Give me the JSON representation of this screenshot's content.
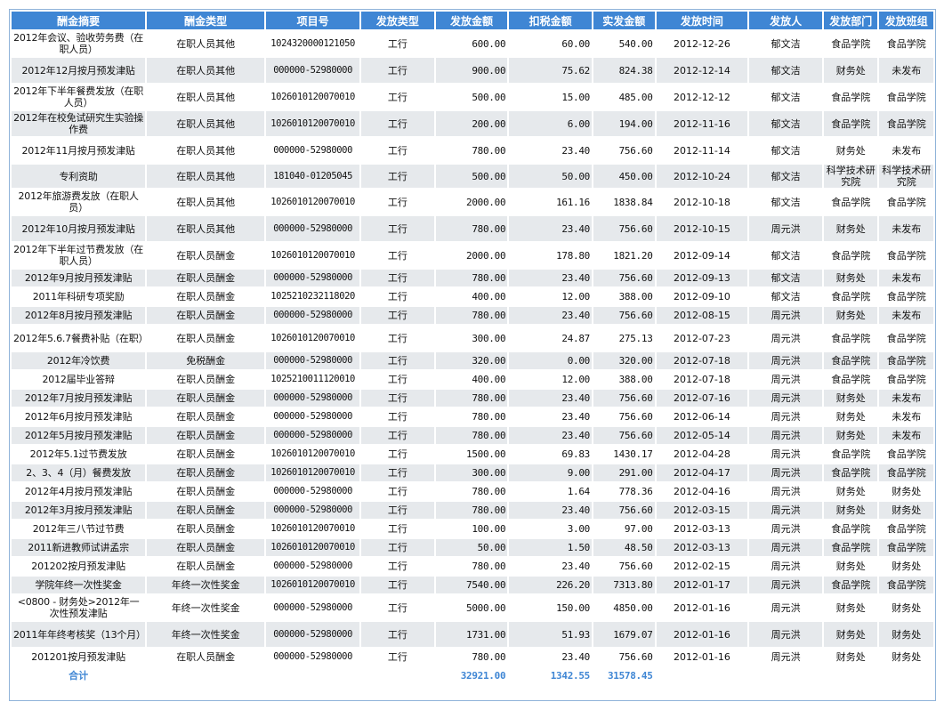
{
  "columns": [
    "酬金摘要",
    "酬金类型",
    "项目号",
    "发放类型",
    "发放金额",
    "扣税金额",
    "实发金额",
    "发放时间",
    "发放人",
    "发放部门",
    "发放班组"
  ],
  "rows": [
    {
      "summary": "2012年会议、验收劳务费（在职人员）",
      "type": "在职人员其他",
      "project": "1024320000121050",
      "method": "工行",
      "amount": "600.00",
      "tax": "60.00",
      "net": "540.00",
      "date": "2012-12-26",
      "issuer": "郁文洁",
      "dept": "食品学院",
      "group": "食品学院"
    },
    {
      "summary": "2012年12月按月预发津贴",
      "type": "在职人员其他",
      "project": "000000-52980000",
      "method": "工行",
      "amount": "900.00",
      "tax": "75.62",
      "net": "824.38",
      "date": "2012-12-14",
      "issuer": "郁文洁",
      "dept": "财务处",
      "group": "未发布"
    },
    {
      "summary": "2012年下半年餐费发放（在职人员）",
      "type": "在职人员其他",
      "project": "1026010120070010",
      "method": "工行",
      "amount": "500.00",
      "tax": "15.00",
      "net": "485.00",
      "date": "2012-12-12",
      "issuer": "郁文洁",
      "dept": "食品学院",
      "group": "食品学院"
    },
    {
      "summary": "2012年在校免试研究生实验操作费",
      "type": "在职人员其他",
      "project": "1026010120070010",
      "method": "工行",
      "amount": "200.00",
      "tax": "6.00",
      "net": "194.00",
      "date": "2012-11-16",
      "issuer": "郁文洁",
      "dept": "食品学院",
      "group": "食品学院"
    },
    {
      "summary": "2012年11月按月预发津贴",
      "type": "在职人员其他",
      "project": "000000-52980000",
      "method": "工行",
      "amount": "780.00",
      "tax": "23.40",
      "net": "756.60",
      "date": "2012-11-14",
      "issuer": "郁文洁",
      "dept": "财务处",
      "group": "未发布"
    },
    {
      "summary": "专利资助",
      "type": "在职人员其他",
      "project": "181040-01205045",
      "method": "工行",
      "amount": "500.00",
      "tax": "50.00",
      "net": "450.00",
      "date": "2012-10-24",
      "issuer": "郁文洁",
      "dept": "科学技术研究院",
      "group": "科学技术研究院"
    },
    {
      "summary": "2012年旅游费发放（在职人员）",
      "type": "在职人员其他",
      "project": "1026010120070010",
      "method": "工行",
      "amount": "2000.00",
      "tax": "161.16",
      "net": "1838.84",
      "date": "2012-10-18",
      "issuer": "郁文洁",
      "dept": "食品学院",
      "group": "食品学院"
    },
    {
      "summary": "2012年10月按月预发津贴",
      "type": "在职人员其他",
      "project": "000000-52980000",
      "method": "工行",
      "amount": "780.00",
      "tax": "23.40",
      "net": "756.60",
      "date": "2012-10-15",
      "issuer": "周元洪",
      "dept": "财务处",
      "group": "未发布"
    },
    {
      "summary": "2012年下半年过节费发放（在职人员）",
      "type": "在职人员酬金",
      "project": "1026010120070010",
      "method": "工行",
      "amount": "2000.00",
      "tax": "178.80",
      "net": "1821.20",
      "date": "2012-09-14",
      "issuer": "郁文洁",
      "dept": "食品学院",
      "group": "食品学院"
    },
    {
      "summary": "2012年9月按月预发津贴",
      "type": "在职人员酬金",
      "project": "000000-52980000",
      "method": "工行",
      "amount": "780.00",
      "tax": "23.40",
      "net": "756.60",
      "date": "2012-09-13",
      "issuer": "郁文洁",
      "dept": "财务处",
      "group": "未发布"
    },
    {
      "summary": "2011年科研专项奖励",
      "type": "在职人员酬金",
      "project": "1025210232118020",
      "method": "工行",
      "amount": "400.00",
      "tax": "12.00",
      "net": "388.00",
      "date": "2012-09-10",
      "issuer": "郁文洁",
      "dept": "食品学院",
      "group": "食品学院"
    },
    {
      "summary": "2012年8月按月预发津贴",
      "type": "在职人员酬金",
      "project": "000000-52980000",
      "method": "工行",
      "amount": "780.00",
      "tax": "23.40",
      "net": "756.60",
      "date": "2012-08-15",
      "issuer": "周元洪",
      "dept": "财务处",
      "group": "未发布"
    },
    {
      "summary": "2012年5.6.7餐费补贴（在职）",
      "type": "在职人员酬金",
      "project": "1026010120070010",
      "method": "工行",
      "amount": "300.00",
      "tax": "24.87",
      "net": "275.13",
      "date": "2012-07-23",
      "issuer": "周元洪",
      "dept": "食品学院",
      "group": "食品学院"
    },
    {
      "summary": "2012年冷饮费",
      "type": "免税酬金",
      "project": "000000-52980000",
      "method": "工行",
      "amount": "320.00",
      "tax": "0.00",
      "net": "320.00",
      "date": "2012-07-18",
      "issuer": "周元洪",
      "dept": "食品学院",
      "group": "食品学院"
    },
    {
      "summary": "2012届毕业答辩",
      "type": "在职人员酬金",
      "project": "1025210011120010",
      "method": "工行",
      "amount": "400.00",
      "tax": "12.00",
      "net": "388.00",
      "date": "2012-07-18",
      "issuer": "周元洪",
      "dept": "食品学院",
      "group": "食品学院"
    },
    {
      "summary": "2012年7月按月预发津贴",
      "type": "在职人员酬金",
      "project": "000000-52980000",
      "method": "工行",
      "amount": "780.00",
      "tax": "23.40",
      "net": "756.60",
      "date": "2012-07-16",
      "issuer": "周元洪",
      "dept": "财务处",
      "group": "未发布"
    },
    {
      "summary": "2012年6月按月预发津贴",
      "type": "在职人员酬金",
      "project": "000000-52980000",
      "method": "工行",
      "amount": "780.00",
      "tax": "23.40",
      "net": "756.60",
      "date": "2012-06-14",
      "issuer": "周元洪",
      "dept": "财务处",
      "group": "未发布"
    },
    {
      "summary": "2012年5月按月预发津贴",
      "type": "在职人员酬金",
      "project": "000000-52980000",
      "method": "工行",
      "amount": "780.00",
      "tax": "23.40",
      "net": "756.60",
      "date": "2012-05-14",
      "issuer": "周元洪",
      "dept": "财务处",
      "group": "未发布"
    },
    {
      "summary": "2012年5.1过节费发放",
      "type": "在职人员酬金",
      "project": "1026010120070010",
      "method": "工行",
      "amount": "1500.00",
      "tax": "69.83",
      "net": "1430.17",
      "date": "2012-04-28",
      "issuer": "周元洪",
      "dept": "食品学院",
      "group": "食品学院"
    },
    {
      "summary": "2、3、4（月）餐费发放",
      "type": "在职人员酬金",
      "project": "1026010120070010",
      "method": "工行",
      "amount": "300.00",
      "tax": "9.00",
      "net": "291.00",
      "date": "2012-04-17",
      "issuer": "周元洪",
      "dept": "食品学院",
      "group": "食品学院"
    },
    {
      "summary": "2012年4月按月预发津贴",
      "type": "在职人员酬金",
      "project": "000000-52980000",
      "method": "工行",
      "amount": "780.00",
      "tax": "1.64",
      "net": "778.36",
      "date": "2012-04-16",
      "issuer": "周元洪",
      "dept": "财务处",
      "group": "财务处"
    },
    {
      "summary": "2012年3月按月预发津贴",
      "type": "在职人员酬金",
      "project": "000000-52980000",
      "method": "工行",
      "amount": "780.00",
      "tax": "23.40",
      "net": "756.60",
      "date": "2012-03-15",
      "issuer": "周元洪",
      "dept": "财务处",
      "group": "财务处"
    },
    {
      "summary": "2012年三八节过节费",
      "type": "在职人员酬金",
      "project": "1026010120070010",
      "method": "工行",
      "amount": "100.00",
      "tax": "3.00",
      "net": "97.00",
      "date": "2012-03-13",
      "issuer": "周元洪",
      "dept": "食品学院",
      "group": "食品学院"
    },
    {
      "summary": "2011新进教师试讲孟宗",
      "type": "在职人员酬金",
      "project": "1026010120070010",
      "method": "工行",
      "amount": "50.00",
      "tax": "1.50",
      "net": "48.50",
      "date": "2012-03-13",
      "issuer": "周元洪",
      "dept": "食品学院",
      "group": "食品学院"
    },
    {
      "summary": "201202按月预发津贴",
      "type": "在职人员酬金",
      "project": "000000-52980000",
      "method": "工行",
      "amount": "780.00",
      "tax": "23.40",
      "net": "756.60",
      "date": "2012-02-15",
      "issuer": "周元洪",
      "dept": "财务处",
      "group": "财务处"
    },
    {
      "summary": "学院年终一次性奖金",
      "type": "年终一次性奖金",
      "project": "1026010120070010",
      "method": "工行",
      "amount": "7540.00",
      "tax": "226.20",
      "net": "7313.80",
      "date": "2012-01-17",
      "issuer": "周元洪",
      "dept": "食品学院",
      "group": "食品学院"
    },
    {
      "summary": "<0800 - 财务处>2012年一次性预发津贴",
      "type": "年终一次性奖金",
      "project": "000000-52980000",
      "method": "工行",
      "amount": "5000.00",
      "tax": "150.00",
      "net": "4850.00",
      "date": "2012-01-16",
      "issuer": "周元洪",
      "dept": "财务处",
      "group": "财务处"
    },
    {
      "summary": "2011年年终考核奖（13个月）",
      "type": "年终一次性奖金",
      "project": "000000-52980000",
      "method": "工行",
      "amount": "1731.00",
      "tax": "51.93",
      "net": "1679.07",
      "date": "2012-01-16",
      "issuer": "周元洪",
      "dept": "财务处",
      "group": "财务处"
    },
    {
      "summary": "201201按月预发津贴",
      "type": "在职人员酬金",
      "project": "000000-52980000",
      "method": "工行",
      "amount": "780.00",
      "tax": "23.40",
      "net": "756.60",
      "date": "2012-01-16",
      "issuer": "周元洪",
      "dept": "财务处",
      "group": "财务处"
    }
  ],
  "totals": {
    "label": "合计",
    "amount": "32921.00",
    "tax": "1342.55",
    "net": "31578.45"
  }
}
